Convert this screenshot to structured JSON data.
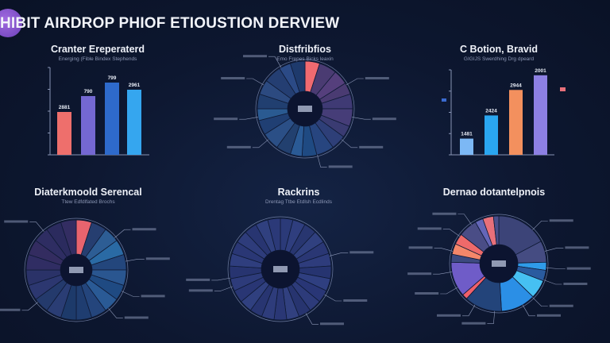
{
  "header": {
    "title": "HIBIT AIRDROP PHIOF ETIOUSTION DERVIEW",
    "logo_color": "#8b55d0"
  },
  "chart_data": [
    {
      "type": "bar",
      "title": "Cranter Ereperaterd",
      "subtitle": "Energing (Fible Bindex Stephends",
      "ylim": [
        0,
        110
      ],
      "grid": false,
      "data_labels": [
        "2881",
        "790",
        "799",
        "2961"
      ],
      "values": [
        54,
        74,
        91,
        82
      ],
      "colors": [
        "#ee6f6c",
        "#7468d2",
        "#2e6acb",
        "#35a6ef"
      ]
    },
    {
      "type": "pie",
      "title": "Distfribfios",
      "subtitle": "Emo Frepes Bicks leaxin",
      "donut": true,
      "values": [
        5,
        6,
        5,
        4,
        5,
        6,
        4,
        5,
        6,
        5,
        4,
        5,
        6,
        5,
        4,
        5,
        5,
        6,
        4,
        5
      ],
      "colors": [
        "#f06a70",
        "#4a3b72",
        "#553f7c",
        "#4a3b72",
        "#3f3a74",
        "#463d78",
        "#3a3b72",
        "#2e3f78",
        "#27457f",
        "#1f4a82",
        "#2a5a95",
        "#22406f",
        "#2b4f86",
        "#203f73",
        "#2a5a91",
        "#213f70",
        "#2c4a80",
        "#243e72",
        "#2b4a86",
        "#1e3a6c"
      ]
    },
    {
      "type": "bar",
      "title": "C Botion, Bravid",
      "subtitle": "GIGIJS Swerdhing Drg dpeard",
      "ylim": [
        0,
        110
      ],
      "grid": false,
      "data_labels": [
        "1481",
        "2424",
        "2944",
        "2001"
      ],
      "values": [
        21,
        51,
        84,
        103
      ],
      "colors": [
        "#7cb8f5",
        "#2aa6f0",
        "#f3905e",
        "#8d80e3"
      ]
    },
    {
      "type": "pie",
      "title": "Diaterkmoold Serencal",
      "subtitle": "Ttew Edfdlfated Brochs",
      "donut": true,
      "values": [
        5,
        5,
        5,
        5,
        5,
        5,
        5,
        5,
        5,
        5,
        5,
        5,
        5,
        5,
        5,
        5,
        5,
        5,
        5,
        5
      ],
      "colors": [
        "#e8646e",
        "#263e70",
        "#2d5d94",
        "#2a6aa4",
        "#23467c",
        "#2a5690",
        "#1f4a82",
        "#2a5a95",
        "#24457c",
        "#1f3d70",
        "#1d3a6a",
        "#2a3d74",
        "#243a6c",
        "#2c3770",
        "#2a3268",
        "#302d63",
        "#332c60",
        "#2e2d62",
        "#2b2b5e",
        "#332d62"
      ]
    },
    {
      "type": "pie",
      "title": "Rackrins",
      "subtitle": "Drentag Ttbe Etdlsh Ecdlinds",
      "donut": true,
      "values": [
        4,
        4,
        4,
        4,
        4,
        4,
        4,
        4,
        4,
        4,
        4,
        4,
        4,
        4,
        4,
        4,
        4,
        4,
        4,
        4,
        4,
        4,
        4,
        4,
        4
      ],
      "colors": [
        "#2b3a78",
        "#2f3e7e",
        "#283670",
        "#30407f",
        "#2a3774",
        "#2e3c7c",
        "#263470",
        "#2f3f80",
        "#293676",
        "#2d3b7a",
        "#27346f",
        "#31407f",
        "#2a3775",
        "#2e3c7b",
        "#283571",
        "#30407f",
        "#293674",
        "#2d3b7a",
        "#273470",
        "#2f3e7e",
        "#2a3775",
        "#2e3c7b",
        "#283571",
        "#30407f",
        "#2b3978"
      ]
    },
    {
      "type": "pie",
      "title": "Dernao dotantelpnois",
      "subtitle": "",
      "donut": true,
      "values": [
        19,
        8,
        3,
        4,
        7,
        13,
        14,
        2,
        13,
        3,
        4,
        4,
        7,
        3,
        4,
        2
      ],
      "colors": [
        "#3c4478",
        "#454c82",
        "#2f9be8",
        "#2a5b9f",
        "#46c0f2",
        "#2b8fe6",
        "#23447a",
        "#f0606a",
        "#6f5cc8",
        "#3d4a80",
        "#f5876a",
        "#ee6a6a",
        "#4a4d86",
        "#6466b8",
        "#e8707a",
        "#4b4f8a"
      ]
    }
  ]
}
